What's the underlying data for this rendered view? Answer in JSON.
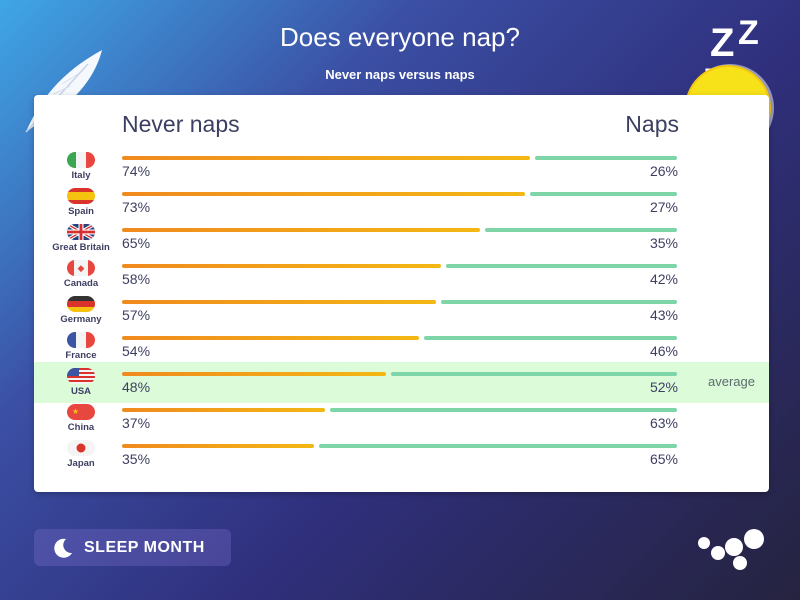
{
  "title": "Does everyone nap?",
  "subtitle": "Never naps versus naps",
  "header": {
    "left": "Never naps",
    "right": "Naps"
  },
  "average_label": "average",
  "badge": {
    "label": "SLEEP MONTH",
    "icon": "moon-icon"
  },
  "colors": {
    "never_start": "#f08a1e",
    "never_end": "#f3b814",
    "naps": "#7ed6a8",
    "average_band": "#dcfbd8"
  },
  "chart_data": {
    "type": "bar",
    "title": "Does everyone nap?",
    "subtitle": "Never naps versus naps",
    "categories": [
      "Italy",
      "Spain",
      "Great Britain",
      "Canada",
      "Germany",
      "France",
      "USA",
      "China",
      "Japan"
    ],
    "series": [
      {
        "name": "Never naps",
        "values": [
          74,
          73,
          65,
          58,
          57,
          54,
          48,
          37,
          35
        ]
      },
      {
        "name": "Naps",
        "values": [
          26,
          27,
          35,
          42,
          43,
          46,
          52,
          63,
          65
        ]
      }
    ],
    "labels_never": [
      "74%",
      "73%",
      "65%",
      "58%",
      "57%",
      "54%",
      "48%",
      "37%",
      "35%"
    ],
    "labels_naps": [
      "26%",
      "27%",
      "35%",
      "42%",
      "43%",
      "46%",
      "52%",
      "63%",
      "65%"
    ],
    "highlight": {
      "category": "USA",
      "label": "average"
    },
    "ylim": [
      0,
      100
    ],
    "legend": "top"
  }
}
